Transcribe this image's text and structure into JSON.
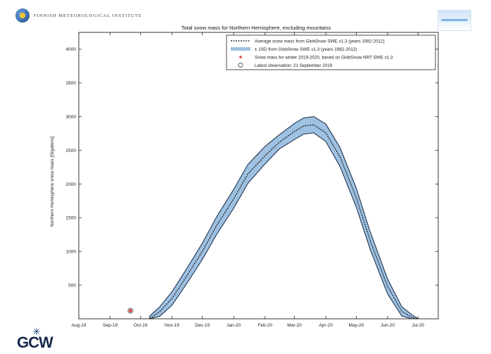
{
  "header": {
    "org_name": "FINNISH METEOROLOGICAL INSTITUTE",
    "gcw_logo_text": "GCW"
  },
  "chart_data": {
    "type": "area",
    "title": "Total snow mass for Northern Hemisphere, excluding mountains",
    "xlabel": "",
    "ylabel": "Northern Hemisphere snow mass [Gigatons]",
    "x_tick_labels": [
      "Aug-19",
      "Sep-19",
      "Oct-19",
      "Nov-19",
      "Dec-19",
      "Jan-20",
      "Feb-20",
      "Mar-20",
      "Apr-20",
      "May-20",
      "Jun-20",
      "Jul-20"
    ],
    "xlim": [
      "2019-08-01",
      "2020-07-21"
    ],
    "ylim": [
      0,
      4250
    ],
    "y_ticks": [
      500,
      1000,
      1500,
      2000,
      2500,
      3000,
      3500,
      4000
    ],
    "grid": false,
    "legend_position": "top-right",
    "legend": [
      "Average snow mass from GlobSnow SWE v1.3 (years 1982-2012)",
      "± 1SD from GlobSnow SWE v1.3 (years 1982-2012)",
      "Snow mass for winter 2019-2020, based on GlobSnow NRT SWE v1.3",
      "Latest observation: 21 September 2019"
    ],
    "series": [
      {
        "name": "Average snow mass from GlobSnow SWE v1.3 (years 1982-2012)",
        "style": "dashed-black",
        "x": [
          "2019-10-10",
          "2019-10-20",
          "2019-11-01",
          "2019-11-15",
          "2019-12-01",
          "2019-12-15",
          "2020-01-01",
          "2020-01-15",
          "2020-02-01",
          "2020-02-15",
          "2020-03-01",
          "2020-03-10",
          "2020-03-20",
          "2020-04-01",
          "2020-04-15",
          "2020-05-01",
          "2020-05-15",
          "2020-06-01",
          "2020-06-15",
          "2020-06-25",
          "2020-07-01"
        ],
        "y": [
          0,
          110,
          300,
          620,
          1000,
          1380,
          1780,
          2150,
          2420,
          2620,
          2780,
          2860,
          2880,
          2760,
          2400,
          1800,
          1150,
          480,
          110,
          20,
          0
        ]
      },
      {
        "name": "± 1SD from GlobSnow SWE v1.3 (years 1982-2012)",
        "style": "band",
        "color": "#9fc1e2",
        "x": [
          "2019-10-10",
          "2019-10-20",
          "2019-11-01",
          "2019-11-15",
          "2019-12-01",
          "2019-12-15",
          "2020-01-01",
          "2020-01-15",
          "2020-02-01",
          "2020-02-15",
          "2020-03-01",
          "2020-03-10",
          "2020-03-20",
          "2020-04-01",
          "2020-04-15",
          "2020-05-01",
          "2020-05-15",
          "2020-06-01",
          "2020-06-15",
          "2020-06-25",
          "2020-07-01"
        ],
        "y_low": [
          0,
          40,
          200,
          510,
          880,
          1250,
          1640,
          2010,
          2300,
          2520,
          2660,
          2740,
          2760,
          2630,
          2260,
          1660,
          1020,
          370,
          40,
          0,
          0
        ],
        "y_high": [
          40,
          180,
          400,
          730,
          1120,
          1510,
          1920,
          2290,
          2560,
          2730,
          2900,
          2980,
          3000,
          2890,
          2540,
          1940,
          1280,
          590,
          180,
          60,
          0
        ]
      },
      {
        "name": "Snow mass for winter 2019-2020, based on GlobSnow NRT SWE v1.3",
        "style": "red-dots",
        "color": "#e03a3a",
        "x": [
          "2019-09-21"
        ],
        "y": [
          120
        ]
      }
    ],
    "latest_observation": {
      "x": "2019-09-21",
      "y": 120
    }
  }
}
